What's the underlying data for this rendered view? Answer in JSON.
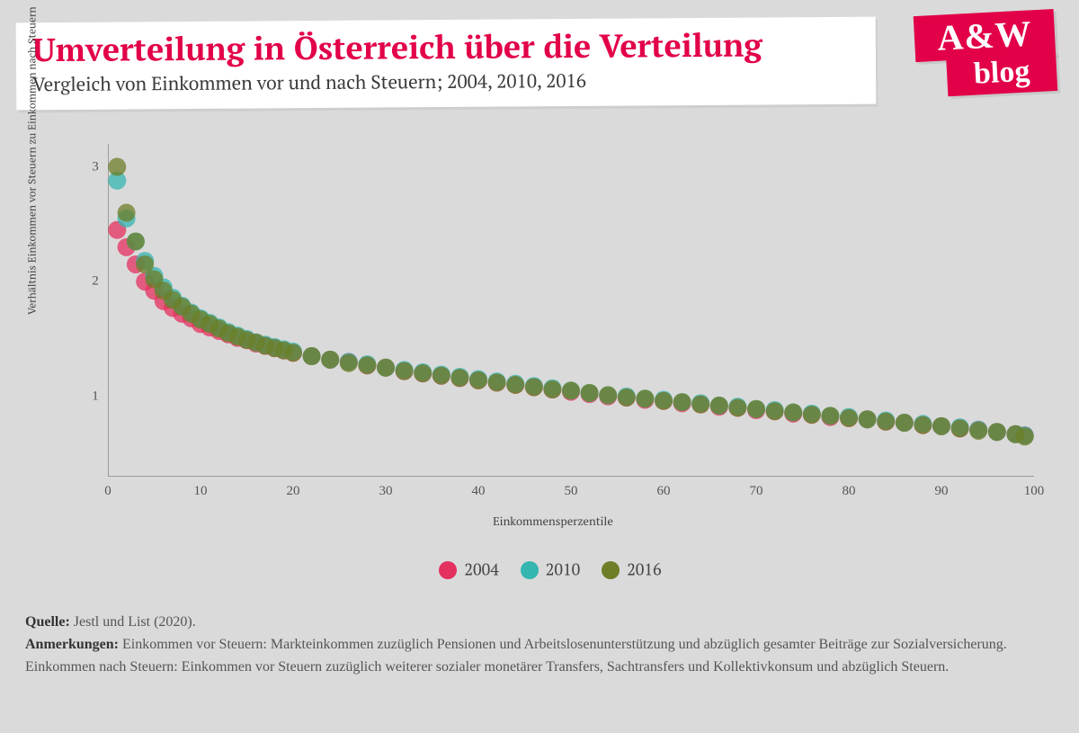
{
  "header": {
    "title": "Umverteilung in Österreich über die Verteilung",
    "subtitle": "Vergleich von Einkommen vor und nach Steuern; 2004, 2010, 2016"
  },
  "logo": {
    "top": "A&W",
    "bottom": "blog",
    "bg": "#e20048",
    "fg": "#ffffff"
  },
  "chart": {
    "type": "scatter",
    "background": "#dadada",
    "xlabel": "Einkommensperzentile",
    "ylabel": "Verhältnis Einkommen vor Steuern zu Einkommen nach Steuern",
    "xlim": [
      0,
      100
    ],
    "ylim": [
      0.3,
      3.2
    ],
    "xticks": [
      0,
      10,
      20,
      30,
      40,
      50,
      60,
      70,
      80,
      90,
      100
    ],
    "yticks": [
      1,
      2,
      3
    ],
    "tick_fontsize": 15,
    "label_fontsize": 13,
    "axis_color": "#888888",
    "marker_radius": 10,
    "marker_opacity": 0.75,
    "series": [
      {
        "name": "2004",
        "color": "#e4305f",
        "x": [
          1,
          2,
          3,
          4,
          5,
          6,
          7,
          8,
          9,
          10,
          11,
          12,
          13,
          14,
          15,
          16,
          17,
          18,
          19,
          20,
          22,
          24,
          26,
          28,
          30,
          32,
          34,
          36,
          38,
          40,
          42,
          44,
          46,
          48,
          50,
          52,
          54,
          56,
          58,
          60,
          62,
          64,
          66,
          68,
          70,
          72,
          74,
          76,
          78,
          80,
          82,
          84,
          86,
          88,
          90,
          92,
          94,
          96,
          98,
          99
        ],
        "y": [
          2.45,
          2.3,
          2.15,
          2.0,
          1.92,
          1.83,
          1.77,
          1.72,
          1.68,
          1.63,
          1.6,
          1.57,
          1.54,
          1.51,
          1.49,
          1.46,
          1.44,
          1.42,
          1.4,
          1.38,
          1.35,
          1.32,
          1.3,
          1.27,
          1.25,
          1.22,
          1.2,
          1.18,
          1.16,
          1.14,
          1.12,
          1.1,
          1.08,
          1.06,
          1.04,
          1.02,
          1.0,
          0.99,
          0.97,
          0.96,
          0.94,
          0.93,
          0.91,
          0.9,
          0.88,
          0.87,
          0.85,
          0.84,
          0.82,
          0.81,
          0.8,
          0.78,
          0.77,
          0.75,
          0.74,
          0.72,
          0.71,
          0.69,
          0.67,
          0.66
        ]
      },
      {
        "name": "2010",
        "color": "#34b5b0",
        "x": [
          1,
          2,
          3,
          4,
          5,
          6,
          7,
          8,
          9,
          10,
          11,
          12,
          13,
          14,
          15,
          16,
          17,
          18,
          19,
          20,
          22,
          24,
          26,
          28,
          30,
          32,
          34,
          36,
          38,
          40,
          42,
          44,
          46,
          48,
          50,
          52,
          54,
          56,
          58,
          60,
          62,
          64,
          66,
          68,
          70,
          72,
          74,
          76,
          78,
          80,
          82,
          84,
          86,
          88,
          90,
          92,
          94,
          96,
          98,
          99
        ],
        "y": [
          2.88,
          2.55,
          2.35,
          2.18,
          2.05,
          1.95,
          1.86,
          1.79,
          1.73,
          1.68,
          1.64,
          1.6,
          1.56,
          1.53,
          1.5,
          1.47,
          1.45,
          1.43,
          1.41,
          1.39,
          1.35,
          1.32,
          1.3,
          1.28,
          1.25,
          1.23,
          1.21,
          1.19,
          1.17,
          1.15,
          1.13,
          1.11,
          1.09,
          1.07,
          1.05,
          1.03,
          1.01,
          1.0,
          0.98,
          0.97,
          0.95,
          0.94,
          0.92,
          0.91,
          0.89,
          0.88,
          0.86,
          0.85,
          0.83,
          0.82,
          0.8,
          0.79,
          0.77,
          0.76,
          0.74,
          0.73,
          0.71,
          0.69,
          0.67,
          0.66
        ]
      },
      {
        "name": "2016",
        "color": "#6d7e27",
        "x": [
          1,
          2,
          3,
          4,
          5,
          6,
          7,
          8,
          9,
          10,
          11,
          12,
          13,
          14,
          15,
          16,
          17,
          18,
          19,
          20,
          22,
          24,
          26,
          28,
          30,
          32,
          34,
          36,
          38,
          40,
          42,
          44,
          46,
          48,
          50,
          52,
          54,
          56,
          58,
          60,
          62,
          64,
          66,
          68,
          70,
          72,
          74,
          76,
          78,
          80,
          82,
          84,
          86,
          88,
          90,
          92,
          94,
          96,
          98,
          99
        ],
        "y": [
          3.0,
          2.6,
          2.35,
          2.15,
          2.02,
          1.92,
          1.84,
          1.78,
          1.72,
          1.67,
          1.63,
          1.59,
          1.55,
          1.52,
          1.49,
          1.47,
          1.44,
          1.42,
          1.4,
          1.38,
          1.35,
          1.32,
          1.29,
          1.27,
          1.25,
          1.22,
          1.2,
          1.18,
          1.16,
          1.14,
          1.12,
          1.1,
          1.08,
          1.06,
          1.05,
          1.03,
          1.01,
          0.99,
          0.98,
          0.96,
          0.95,
          0.93,
          0.92,
          0.9,
          0.89,
          0.87,
          0.86,
          0.84,
          0.83,
          0.81,
          0.8,
          0.78,
          0.77,
          0.75,
          0.74,
          0.72,
          0.7,
          0.69,
          0.67,
          0.65
        ]
      }
    ]
  },
  "legend": {
    "items": [
      {
        "label": "2004",
        "color": "#e4305f"
      },
      {
        "label": "2010",
        "color": "#34b5b0"
      },
      {
        "label": "2016",
        "color": "#6d7e27"
      }
    ]
  },
  "notes": {
    "quelle_label": "Quelle:",
    "quelle": "Jestl und List (2020).",
    "anmerkungen_label": "Anmerkungen:",
    "anmerkungen": "Einkommen vor Steuern: Markteinkommen zuzüglich Pensionen und Arbeitslosenunterstützung und abzüglich gesamter Beiträge zur Sozialversicherung. Einkommen nach Steuern: Einkommen vor Steuern zuzüglich weiterer sozialer monetärer Transfers, Sachtransfers und Kollektivkonsum und abzüglich Steuern."
  }
}
